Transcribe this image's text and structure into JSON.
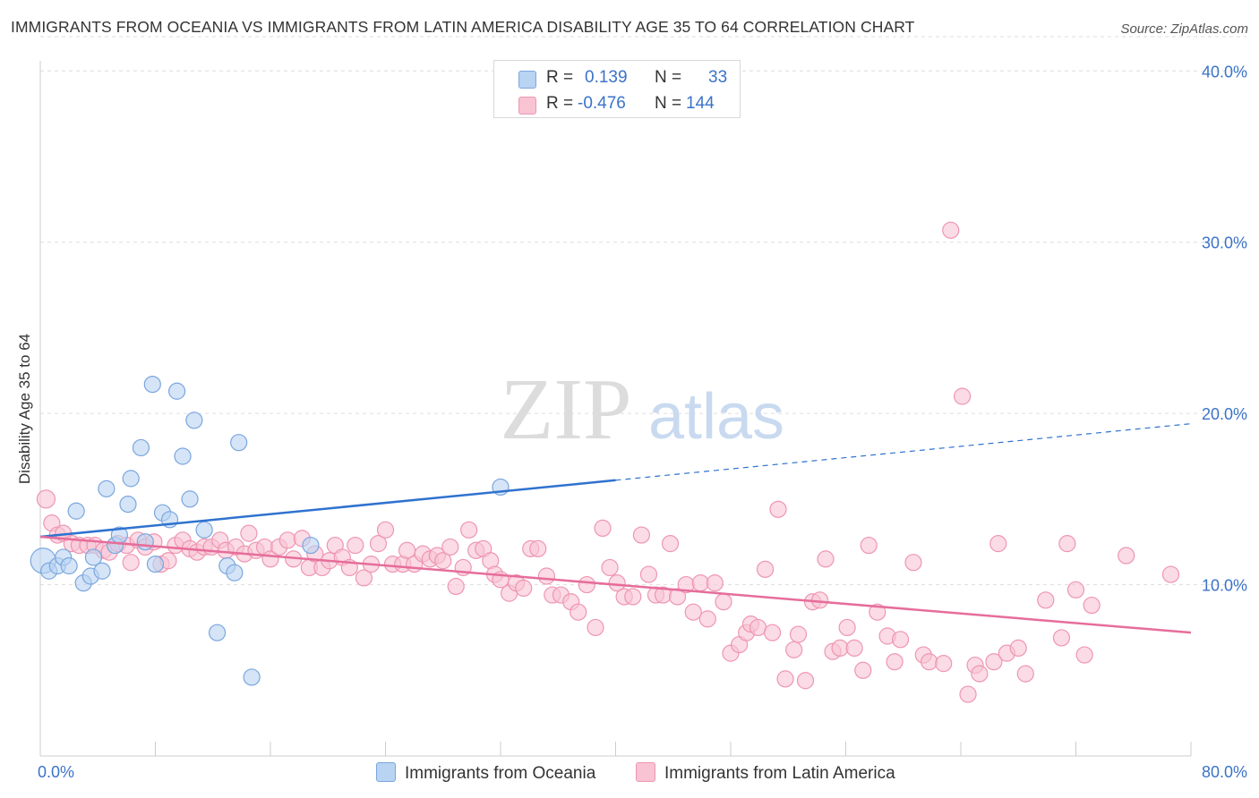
{
  "title": "IMMIGRANTS FROM OCEANIA VS IMMIGRANTS FROM LATIN AMERICA DISABILITY AGE 35 TO 64 CORRELATION CHART",
  "source": "Source: ZipAtlas.com",
  "watermark": {
    "zip": "ZIP",
    "atlas": "atlas"
  },
  "legend": {
    "r_label": "R =",
    "n_label": "N =",
    "oceania": {
      "r": "0.139",
      "n": "33"
    },
    "latam": {
      "r": "-0.476",
      "n": "144"
    }
  },
  "colors": {
    "oceania_fill": "#b9d3f2",
    "oceania_stroke": "#7aa6df",
    "oceania_line": "#2f72cf",
    "latam_fill": "#f8c3d3",
    "latam_stroke": "#ee96b2",
    "latam_line": "#e66d9a",
    "axis_text": "#3b73c8"
  },
  "chart_data": {
    "type": "scatter",
    "title": "IMMIGRANTS FROM OCEANIA VS IMMIGRANTS FROM LATIN AMERICA DISABILITY AGE 35 TO 64 CORRELATION CHART",
    "xlabel": "",
    "ylabel": "Disability Age 35 to 64",
    "xlim": [
      0,
      80
    ],
    "ylim": [
      0,
      42
    ],
    "x_tick_labels": {
      "left": "0.0%",
      "right": "80.0%"
    },
    "y_ticks": [
      10,
      20,
      30,
      40
    ],
    "y_tick_labels": [
      "10.0%",
      "20.0%",
      "30.0%",
      "40.0%"
    ],
    "grid": true,
    "series": [
      {
        "name": "Immigrants from Oceania",
        "r": 0.139,
        "n": 33,
        "trend": {
          "x0": 0,
          "y0": 12.8,
          "x1": 40,
          "y1": 16.1,
          "dashed_to_x": 80,
          "dashed_to_y": 19.4
        },
        "points": [
          [
            0.2,
            11.4
          ],
          [
            0.6,
            10.8
          ],
          [
            1.2,
            11.1
          ],
          [
            1.6,
            11.6
          ],
          [
            2.0,
            11.1
          ],
          [
            2.5,
            14.3
          ],
          [
            3.0,
            10.1
          ],
          [
            3.5,
            10.5
          ],
          [
            3.7,
            11.6
          ],
          [
            4.3,
            10.8
          ],
          [
            4.6,
            15.6
          ],
          [
            5.2,
            12.3
          ],
          [
            5.5,
            12.9
          ],
          [
            6.1,
            14.7
          ],
          [
            6.3,
            16.2
          ],
          [
            7.0,
            18.0
          ],
          [
            7.3,
            12.5
          ],
          [
            7.8,
            21.7
          ],
          [
            8.0,
            11.2
          ],
          [
            8.5,
            14.2
          ],
          [
            9.0,
            13.8
          ],
          [
            9.5,
            21.3
          ],
          [
            9.9,
            17.5
          ],
          [
            10.4,
            15.0
          ],
          [
            10.7,
            19.6
          ],
          [
            11.4,
            13.2
          ],
          [
            12.3,
            7.2
          ],
          [
            13.0,
            11.1
          ],
          [
            13.5,
            10.7
          ],
          [
            13.8,
            18.3
          ],
          [
            14.7,
            4.6
          ],
          [
            18.8,
            12.3
          ],
          [
            32.0,
            15.7
          ]
        ]
      },
      {
        "name": "Immigrants from Latin America",
        "r": -0.476,
        "n": 144,
        "trend": {
          "x0": 0,
          "y0": 12.8,
          "x1": 80,
          "y1": 7.2
        },
        "points": [
          [
            0.4,
            15.0
          ],
          [
            0.8,
            13.6
          ],
          [
            1.2,
            12.9
          ],
          [
            1.6,
            13.0
          ],
          [
            2.2,
            12.4
          ],
          [
            2.7,
            12.3
          ],
          [
            3.3,
            12.3
          ],
          [
            3.8,
            12.3
          ],
          [
            4.4,
            12.0
          ],
          [
            4.8,
            11.9
          ],
          [
            5.4,
            12.4
          ],
          [
            6.0,
            12.3
          ],
          [
            6.3,
            11.3
          ],
          [
            6.8,
            12.6
          ],
          [
            7.3,
            12.2
          ],
          [
            7.9,
            12.5
          ],
          [
            8.4,
            11.2
          ],
          [
            8.9,
            11.4
          ],
          [
            9.4,
            12.3
          ],
          [
            9.9,
            12.6
          ],
          [
            10.4,
            12.1
          ],
          [
            10.9,
            11.9
          ],
          [
            11.4,
            12.2
          ],
          [
            11.9,
            12.2
          ],
          [
            12.5,
            12.6
          ],
          [
            12.9,
            12.0
          ],
          [
            13.6,
            12.2
          ],
          [
            14.2,
            11.8
          ],
          [
            14.5,
            13.0
          ],
          [
            15.0,
            12.0
          ],
          [
            15.6,
            12.2
          ],
          [
            16.0,
            11.5
          ],
          [
            16.6,
            12.2
          ],
          [
            17.2,
            12.6
          ],
          [
            17.6,
            11.5
          ],
          [
            18.2,
            12.7
          ],
          [
            18.7,
            11.0
          ],
          [
            19.1,
            11.8
          ],
          [
            19.6,
            11.0
          ],
          [
            20.1,
            11.4
          ],
          [
            20.5,
            12.3
          ],
          [
            21.0,
            11.6
          ],
          [
            21.5,
            11.0
          ],
          [
            21.9,
            12.3
          ],
          [
            22.5,
            10.4
          ],
          [
            23.0,
            11.2
          ],
          [
            23.5,
            12.4
          ],
          [
            24.0,
            13.2
          ],
          [
            24.5,
            11.2
          ],
          [
            25.2,
            11.2
          ],
          [
            25.5,
            12.0
          ],
          [
            26.0,
            11.2
          ],
          [
            26.6,
            11.8
          ],
          [
            27.1,
            11.5
          ],
          [
            27.6,
            11.7
          ],
          [
            28.0,
            11.4
          ],
          [
            28.5,
            12.2
          ],
          [
            28.9,
            9.9
          ],
          [
            29.4,
            11.0
          ],
          [
            29.8,
            13.2
          ],
          [
            30.3,
            12.0
          ],
          [
            30.8,
            12.1
          ],
          [
            31.3,
            11.4
          ],
          [
            31.6,
            10.6
          ],
          [
            32.0,
            10.3
          ],
          [
            32.6,
            9.5
          ],
          [
            33.1,
            10.1
          ],
          [
            33.6,
            9.8
          ],
          [
            34.1,
            12.1
          ],
          [
            34.6,
            12.1
          ],
          [
            35.2,
            10.5
          ],
          [
            35.6,
            9.4
          ],
          [
            36.2,
            9.4
          ],
          [
            36.9,
            9.0
          ],
          [
            37.4,
            8.4
          ],
          [
            38.0,
            10.0
          ],
          [
            38.6,
            7.5
          ],
          [
            39.1,
            13.3
          ],
          [
            39.6,
            11.0
          ],
          [
            40.1,
            10.1
          ],
          [
            40.6,
            9.3
          ],
          [
            41.2,
            9.3
          ],
          [
            41.8,
            12.9
          ],
          [
            42.3,
            10.6
          ],
          [
            42.8,
            9.4
          ],
          [
            43.3,
            9.4
          ],
          [
            43.8,
            12.4
          ],
          [
            44.3,
            9.3
          ],
          [
            44.9,
            10.0
          ],
          [
            45.4,
            8.4
          ],
          [
            45.9,
            10.1
          ],
          [
            46.4,
            8.0
          ],
          [
            46.9,
            10.1
          ],
          [
            47.5,
            9.0
          ],
          [
            48.0,
            6.0
          ],
          [
            48.6,
            6.5
          ],
          [
            49.1,
            7.2
          ],
          [
            49.4,
            7.7
          ],
          [
            49.9,
            7.5
          ],
          [
            50.4,
            10.9
          ],
          [
            50.9,
            7.2
          ],
          [
            51.3,
            14.4
          ],
          [
            51.8,
            4.5
          ],
          [
            52.4,
            6.2
          ],
          [
            52.7,
            7.1
          ],
          [
            53.2,
            4.4
          ],
          [
            53.7,
            9.0
          ],
          [
            54.2,
            9.1
          ],
          [
            54.6,
            11.5
          ],
          [
            55.1,
            6.1
          ],
          [
            55.6,
            6.3
          ],
          [
            56.1,
            7.5
          ],
          [
            56.6,
            6.3
          ],
          [
            57.2,
            5.0
          ],
          [
            57.6,
            12.3
          ],
          [
            58.2,
            8.4
          ],
          [
            58.9,
            7.0
          ],
          [
            59.4,
            5.5
          ],
          [
            59.8,
            6.8
          ],
          [
            60.7,
            11.3
          ],
          [
            61.4,
            5.9
          ],
          [
            61.8,
            5.5
          ],
          [
            62.8,
            5.4
          ],
          [
            63.3,
            30.7
          ],
          [
            64.1,
            21.0
          ],
          [
            64.5,
            3.6
          ],
          [
            65.0,
            5.3
          ],
          [
            65.3,
            4.8
          ],
          [
            66.3,
            5.5
          ],
          [
            66.6,
            12.4
          ],
          [
            67.2,
            6.0
          ],
          [
            68.0,
            6.3
          ],
          [
            68.5,
            4.8
          ],
          [
            69.9,
            9.1
          ],
          [
            71.0,
            6.9
          ],
          [
            71.4,
            12.4
          ],
          [
            72.0,
            9.7
          ],
          [
            72.6,
            5.9
          ],
          [
            73.1,
            8.8
          ],
          [
            75.5,
            11.7
          ],
          [
            78.6,
            10.6
          ]
        ]
      }
    ]
  },
  "bottom_legend": {
    "oceania_label": "Immigrants from Oceania",
    "latam_label": "Immigrants from Latin America"
  }
}
